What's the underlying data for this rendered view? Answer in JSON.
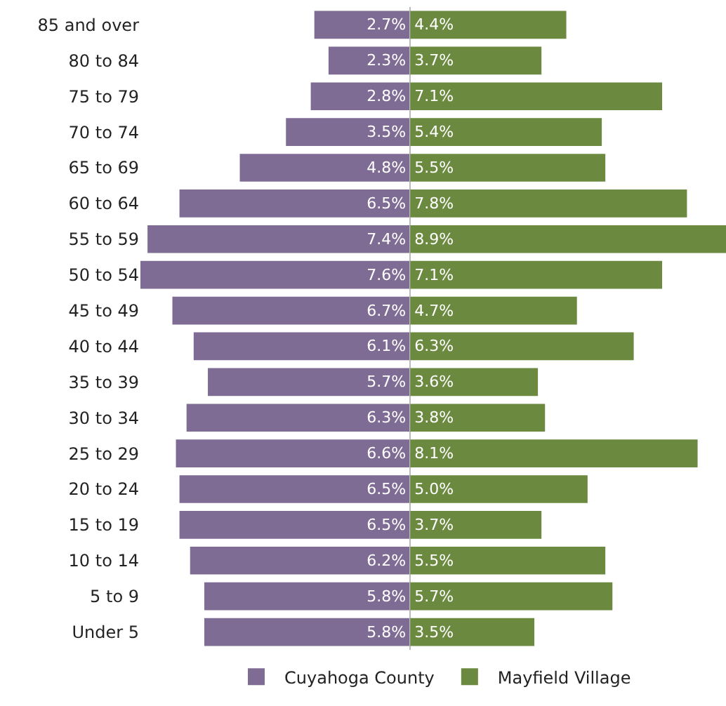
{
  "chart_data": [
    {
      "type": "bar",
      "orientation": "horizontal",
      "categories": [
        "85 and over",
        "80 to 84",
        "75 to 79",
        "70 to 74",
        "65 to 69",
        "60 to 64",
        "55 to 59",
        "50 to 54",
        "45 to 49",
        "40 to 44",
        "35 to 39",
        "30 to 34",
        "25 to 29",
        "20 to 24",
        "15 to 19",
        "10 to 14",
        "5 to 9",
        "Under 5"
      ],
      "series": [
        {
          "name": "Cuyahoga County",
          "color": "#7f6c94",
          "values": [
            2.7,
            2.3,
            2.8,
            3.5,
            4.8,
            6.5,
            7.4,
            7.6,
            6.7,
            6.1,
            5.7,
            6.3,
            6.6,
            6.5,
            6.5,
            6.2,
            5.8,
            5.8
          ],
          "value_labels": [
            "2.7%",
            "2.3%",
            "2.8%",
            "3.5%",
            "4.8%",
            "6.5%",
            "7.4%",
            "7.6%",
            "6.7%",
            "6.1%",
            "5.7%",
            "6.3%",
            "6.6%",
            "6.5%",
            "6.5%",
            "6.2%",
            "5.8%",
            "5.8%"
          ]
        }
      ],
      "tick_labels": "y",
      "legend": "bottom"
    },
    {
      "type": "bar",
      "orientation": "horizontal",
      "categories": [
        "85 and over",
        "80 to 84",
        "75 to 79",
        "70 to 74",
        "65 to 69",
        "60 to 64",
        "55 to 59",
        "50 to 54",
        "45 to 49",
        "40 to 44",
        "35 to 39",
        "30 to 34",
        "25 to 29",
        "20 to 24",
        "15 to 19",
        "10 to 14",
        "5 to 9",
        "Under 5"
      ],
      "series": [
        {
          "name": "Mayfield Village",
          "color": "#6b8a3f",
          "values": [
            4.4,
            3.7,
            7.1,
            5.4,
            5.5,
            7.8,
            8.9,
            7.1,
            4.7,
            6.3,
            3.6,
            3.8,
            8.1,
            5.0,
            3.7,
            5.5,
            5.7,
            3.5
          ],
          "value_labels": [
            "4.4%",
            "3.7%",
            "7.1%",
            "5.4%",
            "5.5%",
            "7.8%",
            "8.9%",
            "7.1%",
            "4.7%",
            "6.3%",
            "3.6%",
            "3.8%",
            "8.1%",
            "5.0%",
            "3.7%",
            "5.5%",
            "5.7%",
            "3.5%"
          ]
        }
      ],
      "tick_labels": false,
      "legend": "bottom"
    }
  ]
}
